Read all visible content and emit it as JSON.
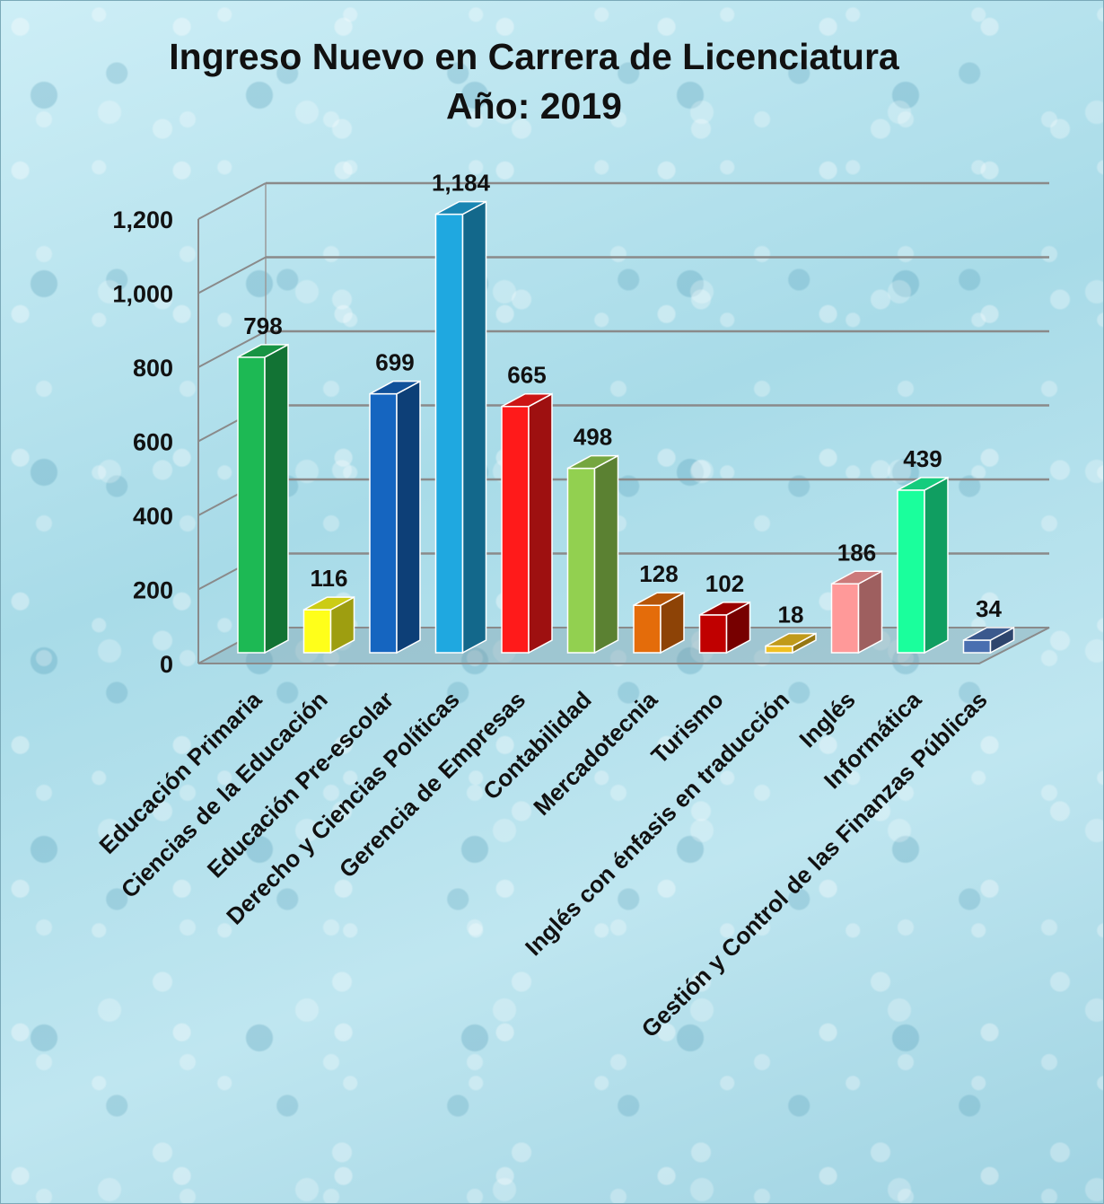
{
  "chart_data": {
    "type": "bar",
    "title": "Ingreso Nuevo en Carrera de Licenciatura",
    "subtitle": "Año: 2019",
    "xlabel": "",
    "ylabel": "",
    "ylim": [
      0,
      1200
    ],
    "yticks": [
      0,
      200,
      400,
      600,
      800,
      1000,
      1200
    ],
    "ytick_labels": [
      "0",
      "200",
      "400",
      "600",
      "800",
      "1,000",
      "1,200"
    ],
    "grid": true,
    "legend": "none",
    "categories": [
      "Educación Primaria",
      "Ciencias de la Educación",
      "Educación Pre-escolar",
      "Derecho y Ciencias Políticas",
      "Gerencia de Empresas",
      "Contabilidad",
      "Mercadotecnia",
      "Turismo",
      "Inglés con énfasis en traducción",
      "Inglés",
      "Informática",
      "Gestión y Control de las Finanzas Públicas"
    ],
    "values": [
      798,
      116,
      699,
      1184,
      665,
      498,
      128,
      102,
      18,
      186,
      439,
      34
    ],
    "value_labels": [
      "798",
      "116",
      "699",
      "1,184",
      "665",
      "498",
      "128",
      "102",
      "18",
      "186",
      "439",
      "34"
    ],
    "colors": [
      "#1db954",
      "#ffff1a",
      "#1565c0",
      "#1fa8e0",
      "#ff1a1a",
      "#92d050",
      "#e46c0a",
      "#c00000",
      "#f0c020",
      "#ff9999",
      "#1aff9c",
      "#4a6fb0"
    ]
  }
}
